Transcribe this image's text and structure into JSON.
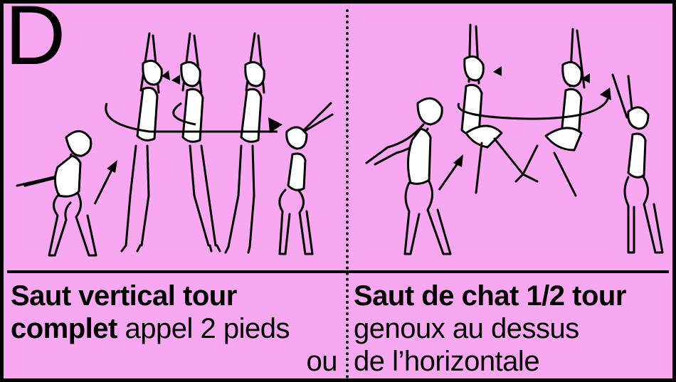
{
  "panel": {
    "letter": "D",
    "background": "#f7a8f0",
    "left": {
      "line1_bold": "Saut vertical tour",
      "line2_bold": "complet",
      "line2_rest": " appel 2 pieds",
      "line3": "ou",
      "icon": "figure-sequence-vertical-jump-full-turn"
    },
    "right": {
      "line1_bold": "Saut de chat 1/2 tour",
      "line2": "genoux au dessus",
      "line3": "de l’horizontale",
      "icon": "figure-sequence-cat-leap-half-turn"
    }
  }
}
